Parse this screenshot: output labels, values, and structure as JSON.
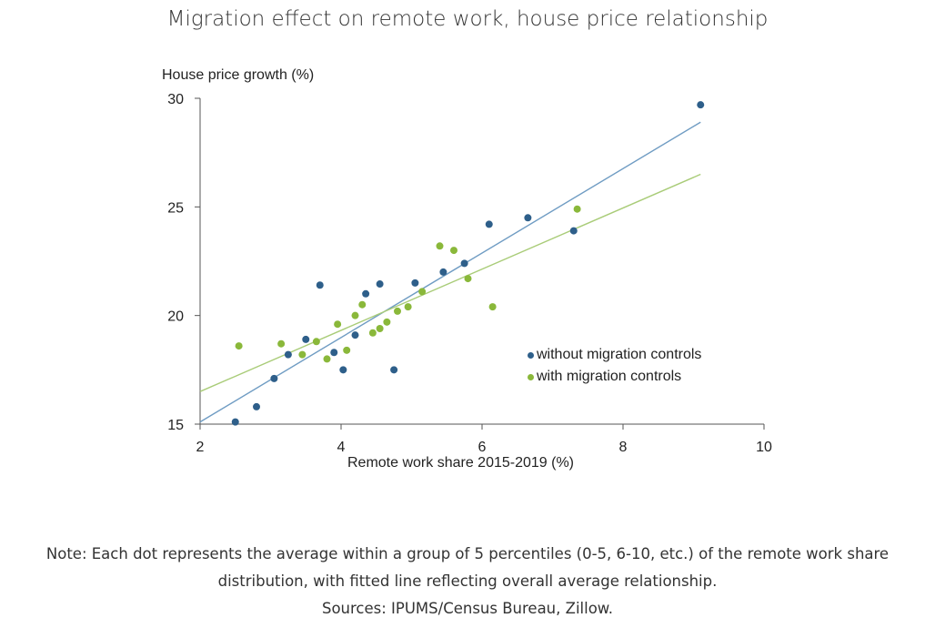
{
  "title": "Migration effect on remote work, house price relationship",
  "note_lines": [
    "Note: Each dot represents the average within a group of 5 percentiles (0-5, 6-10, etc.) of the remote work share",
    "distribution, with fitted line reflecting overall average relationship.",
    "Sources: IPUMS/Census Bureau, Zillow."
  ],
  "chart_data": {
    "type": "scatter",
    "title": "Migration effect on remote work, house price relationship",
    "xlabel": "Remote work share 2015-2019 (%)",
    "ylabel": "House price growth (%)",
    "xlim": [
      2,
      10
    ],
    "ylim": [
      15,
      30
    ],
    "x_ticks": [
      "2",
      "4",
      "6",
      "8",
      "10"
    ],
    "y_ticks": [
      "15",
      "20",
      "25",
      "30"
    ],
    "grid": false,
    "legend_position": "right-middle",
    "series": [
      {
        "name": "without migration controls",
        "color": "#2e5f8a",
        "points": [
          [
            2.5,
            15.1
          ],
          [
            2.8,
            15.8
          ],
          [
            3.05,
            17.1
          ],
          [
            3.25,
            18.2
          ],
          [
            3.5,
            18.9
          ],
          [
            3.7,
            21.4
          ],
          [
            3.9,
            18.3
          ],
          [
            4.03,
            17.5
          ],
          [
            4.2,
            19.1
          ],
          [
            4.35,
            21.0
          ],
          [
            4.55,
            21.45
          ],
          [
            4.75,
            17.5
          ],
          [
            5.05,
            21.5
          ],
          [
            5.45,
            22.0
          ],
          [
            5.75,
            22.4
          ],
          [
            6.1,
            24.2
          ],
          [
            6.65,
            24.5
          ],
          [
            7.3,
            23.9
          ],
          [
            9.1,
            29.7
          ]
        ],
        "fit": [
          [
            2.0,
            15.1
          ],
          [
            9.1,
            28.9
          ]
        ]
      },
      {
        "name": "with migration controls",
        "color": "#8ab83a",
        "points": [
          [
            2.55,
            18.6
          ],
          [
            3.15,
            18.7
          ],
          [
            3.45,
            18.2
          ],
          [
            3.65,
            18.8
          ],
          [
            3.8,
            18.0
          ],
          [
            3.95,
            19.6
          ],
          [
            4.08,
            18.4
          ],
          [
            4.2,
            20.0
          ],
          [
            4.3,
            20.5
          ],
          [
            4.45,
            19.2
          ],
          [
            4.55,
            19.4
          ],
          [
            4.65,
            19.7
          ],
          [
            4.8,
            20.2
          ],
          [
            4.95,
            20.4
          ],
          [
            5.15,
            21.1
          ],
          [
            5.4,
            23.2
          ],
          [
            5.6,
            23.0
          ],
          [
            5.8,
            21.7
          ],
          [
            6.15,
            20.4
          ],
          [
            7.35,
            24.9
          ]
        ],
        "fit": [
          [
            2.0,
            16.5
          ],
          [
            9.1,
            26.5
          ]
        ]
      }
    ]
  }
}
